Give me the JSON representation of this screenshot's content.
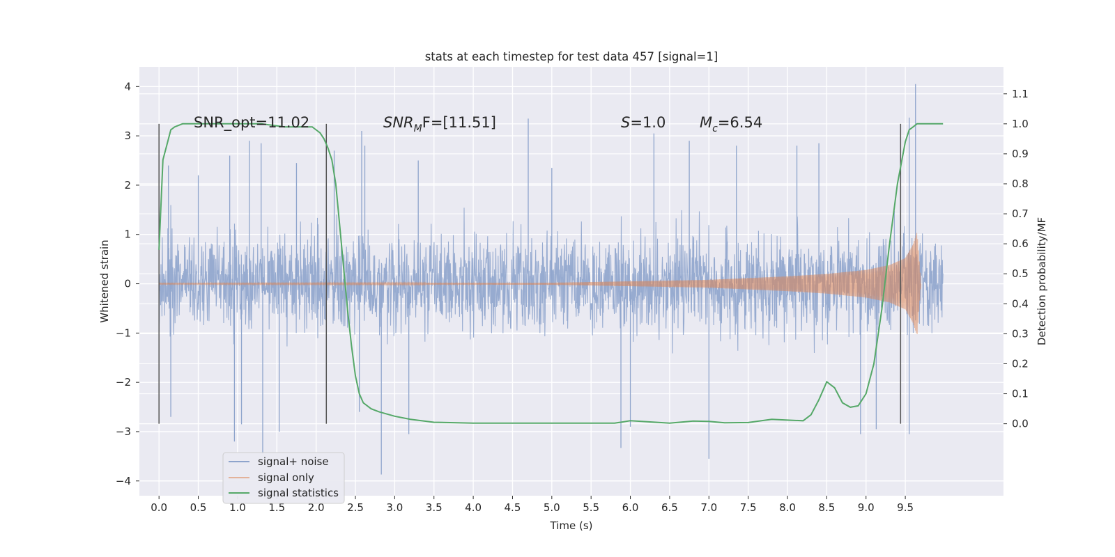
{
  "chart_data": {
    "type": "line",
    "title": "stats at each timestep for test data 457 [signal=1]",
    "xlabel": "Time (s)",
    "ylabel": "Whitened strain",
    "y2label": "Detection probability/MF",
    "xlim": [
      -0.25,
      10.75
    ],
    "ylim": [
      -4.3,
      4.4
    ],
    "y2lim": [
      -0.24,
      1.19
    ],
    "x_ticks": [
      0.0,
      0.5,
      1.0,
      1.5,
      2.0,
      2.5,
      3.0,
      3.5,
      4.0,
      4.5,
      5.0,
      5.5,
      6.0,
      6.5,
      7.0,
      7.5,
      8.0,
      8.5,
      9.0,
      9.5
    ],
    "x_tick_labels": [
      "0.0",
      "0.5",
      "1.0",
      "1.5",
      "2.0",
      "2.5",
      "3.0",
      "3.5",
      "4.0",
      "4.5",
      "5.0",
      "5.5",
      "6.0",
      "6.5",
      "7.0",
      "7.5",
      "8.0",
      "8.5",
      "9.0",
      "9.5"
    ],
    "y_ticks": [
      4,
      3,
      2,
      1,
      0,
      -1,
      -2,
      -3,
      -4
    ],
    "y_tick_labels": [
      "4",
      "3",
      "2",
      "1",
      "0",
      "−1",
      "−2",
      "−3",
      "−4"
    ],
    "y2_ticks": [
      1.1,
      1.0,
      0.9,
      0.8,
      0.7,
      0.6,
      0.5,
      0.4,
      0.3,
      0.2,
      0.1,
      0.0
    ],
    "y2_tick_labels": [
      "1.1",
      "1.0",
      "0.9",
      "0.8",
      "0.7",
      "0.6",
      "0.5",
      "0.4",
      "0.3",
      "0.2",
      "0.1",
      "0.0"
    ],
    "grid": true,
    "legend_position": "lower-left",
    "vlines": [
      {
        "x": 0.0,
        "y2_range": [
          0.0,
          1.0
        ]
      },
      {
        "x": 2.13,
        "y2_range": [
          0.0,
          1.0
        ]
      },
      {
        "x": 9.44,
        "y2_range": [
          0.0,
          1.0
        ]
      }
    ],
    "annotations": {
      "snr_opt": "SNR_opt=11.02",
      "snr_mf_prefix": "SNR",
      "snr_mf_sub": "M",
      "snr_mf_suffix": "F=[11.51]",
      "s_prefix": "S",
      "s_suffix": "=1.0",
      "mc_prefix": "M",
      "mc_sub": "c",
      "mc_suffix": "=6.54"
    },
    "series": [
      {
        "name": "signal+ noise",
        "color": "#8ea4cc",
        "axis": "left",
        "x_range": [
          0.0,
          9.98
        ],
        "description_points": "dense noise, typical envelope about ±2, spikes up to 4.05 near t=9.63 and down to -3.87 near t=2.83",
        "spikes": [
          [
            0.12,
            2.4
          ],
          [
            0.5,
            2.2
          ],
          [
            0.9,
            2.6
          ],
          [
            1.15,
            2.9
          ],
          [
            1.3,
            2.85
          ],
          [
            1.75,
            2.45
          ],
          [
            2.23,
            2.7
          ],
          [
            2.58,
            3.1
          ],
          [
            2.62,
            2.8
          ],
          [
            3.3,
            2.5
          ],
          [
            4.7,
            3.35
          ],
          [
            5.0,
            2.35
          ],
          [
            6.3,
            3.05
          ],
          [
            6.75,
            2.9
          ],
          [
            7.35,
            2.8
          ],
          [
            8.12,
            2.8
          ],
          [
            8.4,
            2.85
          ],
          [
            9.55,
            3.37
          ],
          [
            9.63,
            4.05
          ],
          [
            0.15,
            -2.7
          ],
          [
            0.96,
            -3.2
          ],
          [
            1.05,
            -2.85
          ],
          [
            1.32,
            -3.45
          ],
          [
            1.53,
            -3.0
          ],
          [
            2.55,
            -2.6
          ],
          [
            2.83,
            -3.87
          ],
          [
            3.18,
            -3.05
          ],
          [
            5.88,
            -3.33
          ],
          [
            6.0,
            -2.9
          ],
          [
            7.0,
            -3.55
          ],
          [
            8.93,
            -3.05
          ],
          [
            9.55,
            -3.05
          ],
          [
            9.13,
            -2.95
          ]
        ]
      },
      {
        "name": "signal only",
        "color": "#dd8452",
        "axis": "left",
        "x_range": [
          0.0,
          9.7
        ],
        "description_points": "chirp with amplitude growing from ~0.01 at t=5 to ~1.05 near t=9.63 then ending at t=9.7",
        "envelope": [
          [
            0.0,
            0.01
          ],
          [
            5.0,
            0.02
          ],
          [
            6.0,
            0.05
          ],
          [
            7.0,
            0.08
          ],
          [
            8.0,
            0.15
          ],
          [
            8.5,
            0.2
          ],
          [
            9.0,
            0.28
          ],
          [
            9.3,
            0.38
          ],
          [
            9.5,
            0.52
          ],
          [
            9.6,
            0.8
          ],
          [
            9.65,
            1.05
          ],
          [
            9.7,
            0.0
          ]
        ]
      },
      {
        "name": "signal statistics",
        "color": "#55a868",
        "axis": "right",
        "x": [
          0.0,
          0.05,
          0.1,
          0.15,
          0.2,
          0.3,
          0.5,
          0.8,
          1.0,
          1.3,
          1.6,
          1.8,
          1.95,
          2.0,
          2.05,
          2.1,
          2.15,
          2.2,
          2.25,
          2.3,
          2.35,
          2.4,
          2.45,
          2.5,
          2.55,
          2.6,
          2.7,
          2.8,
          3.0,
          3.2,
          3.5,
          4.0,
          4.5,
          5.0,
          5.5,
          5.8,
          6.0,
          6.2,
          6.5,
          6.8,
          7.0,
          7.2,
          7.5,
          7.8,
          8.0,
          8.2,
          8.3,
          8.4,
          8.5,
          8.6,
          8.7,
          8.8,
          8.9,
          9.0,
          9.1,
          9.2,
          9.3,
          9.4,
          9.5,
          9.55,
          9.6,
          9.65,
          9.7,
          9.98
        ],
        "values": [
          0.58,
          0.88,
          0.93,
          0.98,
          0.99,
          1.0,
          1.0,
          1.0,
          1.0,
          1.0,
          0.99,
          0.99,
          0.99,
          0.98,
          0.97,
          0.95,
          0.92,
          0.88,
          0.8,
          0.66,
          0.52,
          0.38,
          0.26,
          0.16,
          0.1,
          0.07,
          0.05,
          0.04,
          0.025,
          0.015,
          0.005,
          0.002,
          0.002,
          0.002,
          0.002,
          0.002,
          0.01,
          0.007,
          0.002,
          0.009,
          0.008,
          0.003,
          0.004,
          0.015,
          0.012,
          0.01,
          0.03,
          0.08,
          0.14,
          0.12,
          0.07,
          0.055,
          0.06,
          0.1,
          0.2,
          0.38,
          0.6,
          0.8,
          0.94,
          0.98,
          0.99,
          1.0,
          1.0,
          1.0
        ]
      }
    ]
  }
}
